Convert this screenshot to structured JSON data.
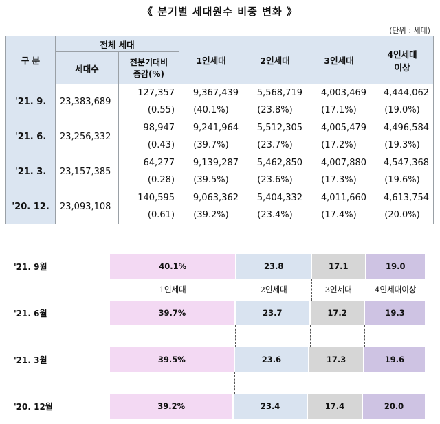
{
  "title": "《 분기별 세대원수 비중 변화 》",
  "unit": "(단위 : 세대)",
  "table": {
    "col_label": "구 분",
    "group_header": "전체 세대",
    "sub_headers": [
      "세대수",
      "전분기대비\n증감(%)"
    ],
    "headers": [
      "1인세대",
      "2인세대",
      "3인세대",
      "4인세대\n이상"
    ],
    "rows": [
      {
        "label": "'21. 9.",
        "total": "23,383,689",
        "change": "127,357",
        "change_pct": "(0.55)",
        "values": [
          "9,367,439",
          "5,568,719",
          "4,003,469",
          "4,444,062"
        ],
        "pcts": [
          "(40.1%)",
          "(23.8%)",
          "(17.1%)",
          "(19.0%)"
        ]
      },
      {
        "label": "'21. 6.",
        "total": "23,256,332",
        "change": "98,947",
        "change_pct": "(0.43)",
        "values": [
          "9,241,964",
          "5,512,305",
          "4,005,479",
          "4,496,584"
        ],
        "pcts": [
          "(39.7%)",
          "(23.7%)",
          "(17.2%)",
          "(19.3%)"
        ]
      },
      {
        "label": "'21. 3.",
        "total": "23,157,385",
        "change": "64,277",
        "change_pct": "(0.28)",
        "values": [
          "9,139,287",
          "5,462,850",
          "4,007,880",
          "4,547,368"
        ],
        "pcts": [
          "(39.5%)",
          "(23.6%)",
          "(17.3%)",
          "(19.6%)"
        ]
      },
      {
        "label": "'20. 12.",
        "total": "23,093,108",
        "change": "140,595",
        "change_pct": "(0.61)",
        "values": [
          "9,063,362",
          "5,404,332",
          "4,011,660",
          "4,613,754"
        ],
        "pcts": [
          "(39.2%)",
          "(23.4%)",
          "(17.4%)",
          "(20.0%)"
        ]
      }
    ]
  },
  "chart_data": {
    "type": "bar",
    "stacked": true,
    "orientation": "horizontal",
    "categories": [
      "'21. 9월",
      "'21. 6월",
      "'21. 3월",
      "'20. 12월"
    ],
    "series": [
      {
        "name": "1인세대",
        "values": [
          40.1,
          39.7,
          39.5,
          39.2
        ],
        "labels": [
          "40.1%",
          "39.7%",
          "39.5%",
          "39.2%"
        ],
        "color": "#f3d9f3"
      },
      {
        "name": "2인세대",
        "values": [
          23.8,
          23.7,
          23.6,
          23.4
        ],
        "labels": [
          "23.8",
          "23.7",
          "23.6",
          "23.4"
        ],
        "color": "#d9e3f0"
      },
      {
        "name": "3인세대",
        "values": [
          17.1,
          17.2,
          17.3,
          17.4
        ],
        "labels": [
          "17.1",
          "17.2",
          "17.3",
          "17.4"
        ],
        "color": "#d6d6d6"
      },
      {
        "name": "4인세대이상",
        "values": [
          19.0,
          19.3,
          19.6,
          20.0
        ],
        "labels": [
          "19.0",
          "19.3",
          "19.6",
          "20.0"
        ],
        "color": "#cec3e3"
      }
    ]
  }
}
